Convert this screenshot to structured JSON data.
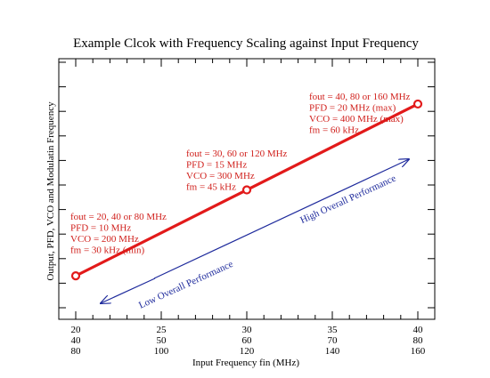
{
  "chart_data": {
    "type": "line",
    "title": "Example Clcok with Frequency Scaling against Input Frequency",
    "xlabel": "Input Frequency fin (MHz)",
    "ylabel": "Output, PFD, VCO and Modulatin Frequency",
    "x_tick_rows": [
      [
        "20",
        "25",
        "30",
        "35",
        "40"
      ],
      [
        "40",
        "50",
        "60",
        "70",
        "80"
      ],
      [
        "80",
        "100",
        "120",
        "140",
        "160"
      ]
    ],
    "xlim": [
      20,
      40
    ],
    "series": [
      {
        "color": "#e21a1a",
        "points": [
          {
            "x": 20,
            "y": 1
          },
          {
            "x": 30,
            "y": 4.5
          },
          {
            "x": 40,
            "y": 8
          }
        ]
      }
    ],
    "annotations": [
      {
        "x": 20,
        "lines": [
          "fout = 20, 40 or 80 MHz",
          "PFD = 10 MHz",
          "VCO = 200 MHz",
          "fm = 30 kHz (min)"
        ]
      },
      {
        "x": 30,
        "lines": [
          "fout = 30, 60 or 120 MHz",
          "PFD = 15 MHz",
          "VCO = 300 MHz",
          "fm = 45 kHz"
        ]
      },
      {
        "x": 40,
        "lines": [
          "fout = 40, 80 or 160 MHz",
          "PFD = 20 MHz (max)",
          "VCO = 400 MHz (max)",
          "fm = 60 kHz"
        ]
      }
    ],
    "arrow_labels": {
      "low": "Low Overall Performance",
      "high": "High Overall Performance"
    },
    "colors": {
      "series": "#e21a1a",
      "annotation": "#d0201c",
      "arrow": "#1e2a9c",
      "axis": "#000000"
    },
    "grid": false
  }
}
